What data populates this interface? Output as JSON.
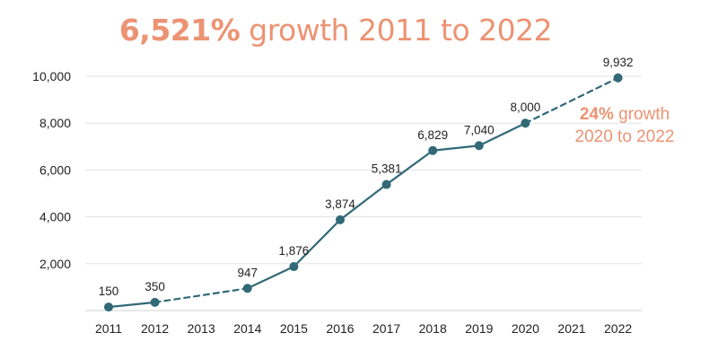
{
  "title": {
    "highlight": "6,521%",
    "rest": " growth 2011 to 2022"
  },
  "colors": {
    "series": "#316976",
    "accent": "#ec9373",
    "grid": "#e3e3e3",
    "text": "#222222"
  },
  "annotation": {
    "highlight": "24%",
    "line1_rest": " growth",
    "line2": "2020 to 2022"
  },
  "chart_data": {
    "type": "line",
    "categories": [
      "2011",
      "2012",
      "2013",
      "2014",
      "2015",
      "2016",
      "2017",
      "2018",
      "2019",
      "2020",
      "2021",
      "2022"
    ],
    "points": [
      {
        "x": "2011",
        "y": 150,
        "label": "150"
      },
      {
        "x": "2012",
        "y": 350,
        "label": "350"
      },
      {
        "x": "2014",
        "y": 947,
        "label": "947"
      },
      {
        "x": "2015",
        "y": 1876,
        "label": "1,876"
      },
      {
        "x": "2016",
        "y": 3874,
        "label": "3,874"
      },
      {
        "x": "2017",
        "y": 5381,
        "label": "5,381"
      },
      {
        "x": "2018",
        "y": 6829,
        "label": "6,829"
      },
      {
        "x": "2019",
        "y": 7040,
        "label": "7,040"
      },
      {
        "x": "2020",
        "y": 8000,
        "label": "8,000"
      },
      {
        "x": "2022",
        "y": 9932,
        "label": "9,932"
      }
    ],
    "dashed_segments": [
      [
        "2012",
        "2014"
      ],
      [
        "2020",
        "2022"
      ]
    ],
    "yticks": [
      2000,
      4000,
      6000,
      8000,
      10000
    ],
    "ytick_labels": [
      "2,000",
      "4,000",
      "6,000",
      "8,000",
      "10,000"
    ],
    "ylim": [
      0,
      10000
    ],
    "grid": true,
    "legend": false
  }
}
